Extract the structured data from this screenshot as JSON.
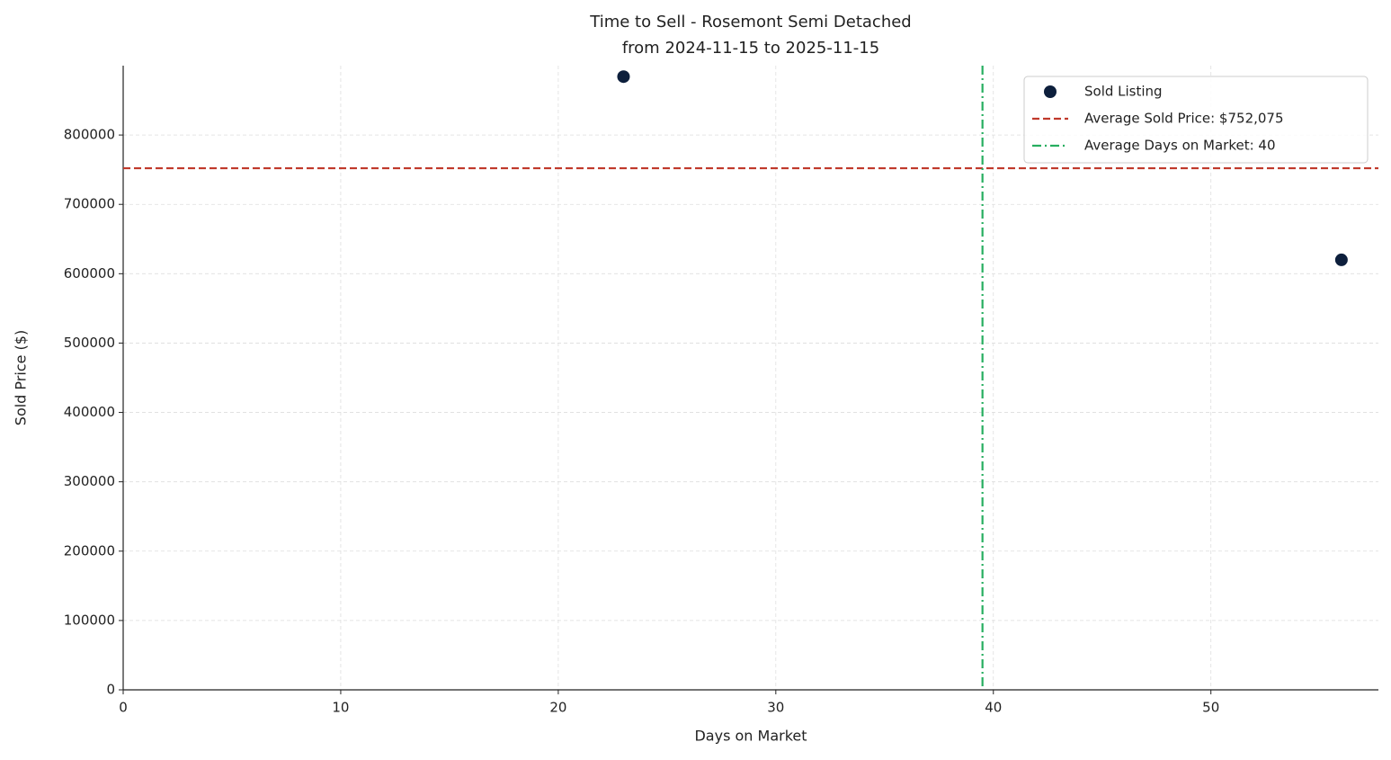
{
  "chart_data": {
    "type": "scatter",
    "title": "Time to Sell - Rosemont Semi Detached",
    "subtitle": "from 2024-11-15 to 2025-11-15",
    "x_label": "Days on Market",
    "y_label": "Sold Price ($)",
    "series": [
      {
        "name": "Sold Listing",
        "color": "#0d1f3c",
        "x": [
          23,
          56
        ],
        "values": [
          884150,
          620000
        ]
      }
    ],
    "reference_lines": [
      {
        "name": "Average Sold Price: $752,075",
        "orientation": "horizontal",
        "value": 752075,
        "color": "#c0392b",
        "style": "dashed"
      },
      {
        "name": "Average Days on Market: 40",
        "orientation": "vertical",
        "value": 39.5,
        "color": "#27ae60",
        "style": "dashdot"
      }
    ],
    "xlim": [
      0,
      57.7
    ],
    "xticks": [
      0,
      10,
      20,
      30,
      40,
      50
    ],
    "ylim": [
      0,
      900000
    ],
    "yticks": [
      0,
      100000,
      200000,
      300000,
      400000,
      500000,
      600000,
      700000,
      800000
    ],
    "grid": true,
    "legend": "upper right"
  }
}
